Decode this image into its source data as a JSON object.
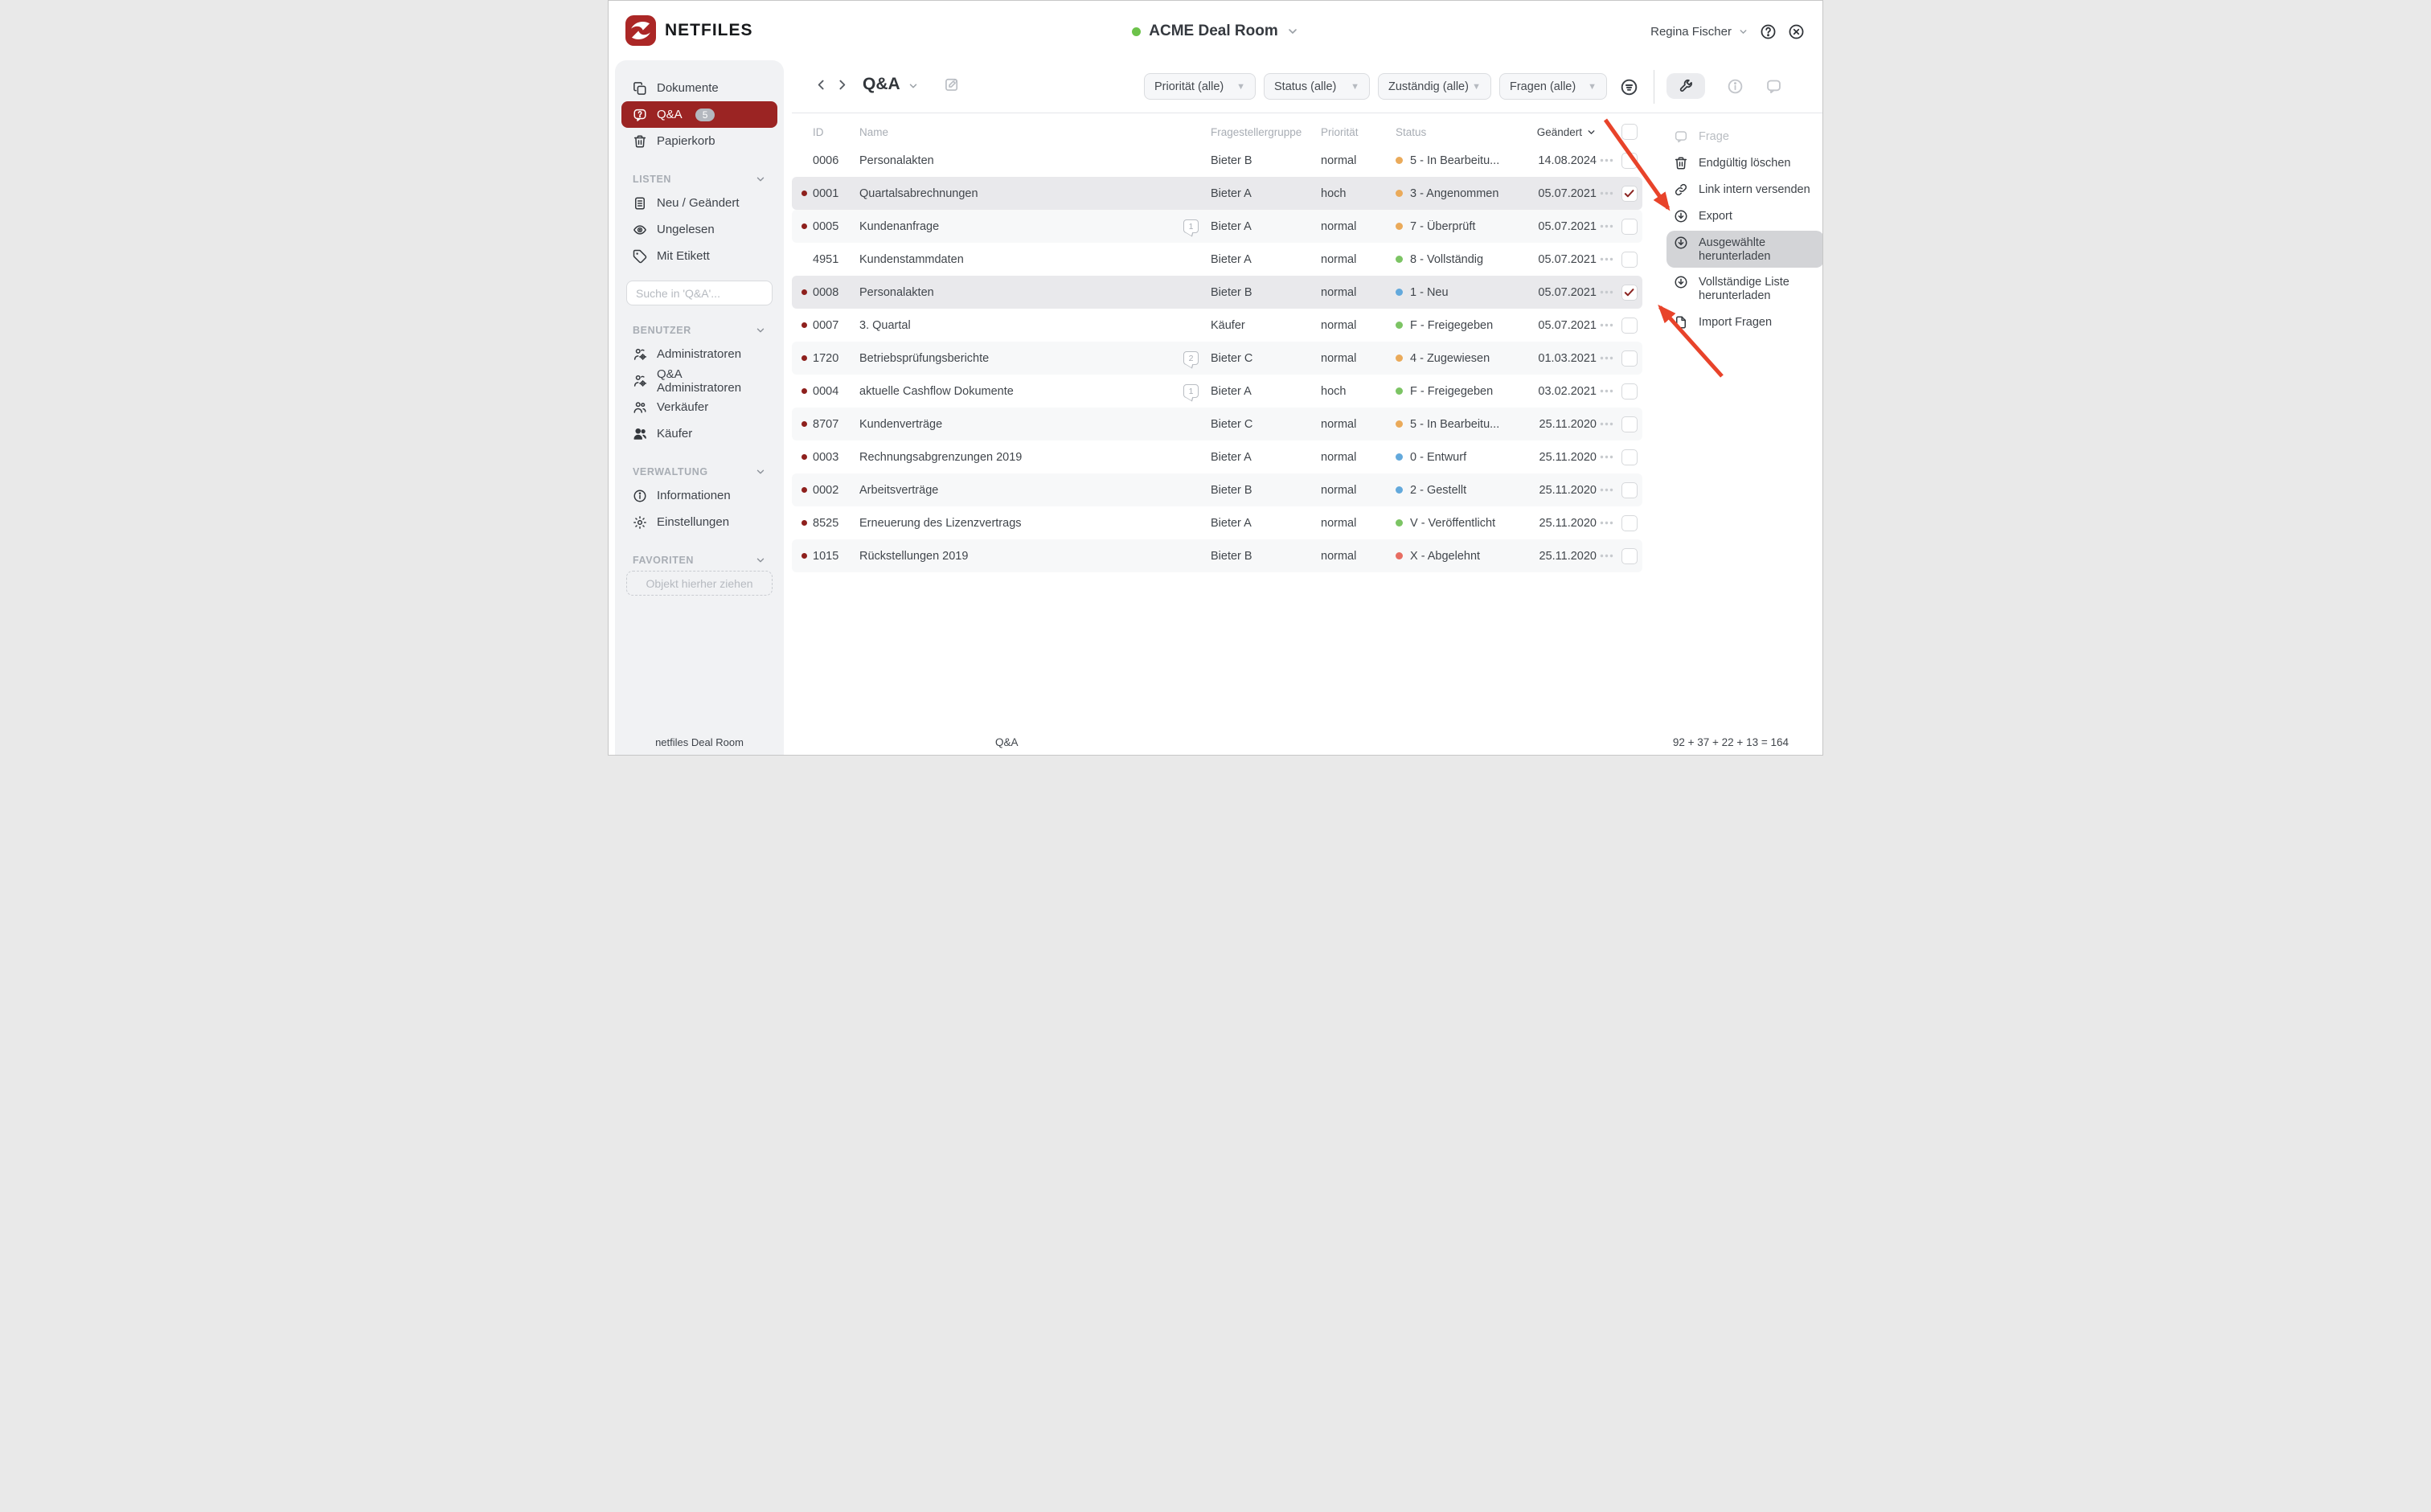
{
  "brand": {
    "name": "NETFILES"
  },
  "header": {
    "room_name": "ACME Deal Room",
    "user_name": "Regina Fischer"
  },
  "sidebar": {
    "nav": [
      {
        "label": "Dokumente",
        "icon": "documents-icon",
        "active": false
      },
      {
        "label": "Q&A",
        "icon": "qa-bubble-icon",
        "active": true,
        "badge": "5"
      },
      {
        "label": "Papierkorb",
        "icon": "trash-icon",
        "active": false
      }
    ],
    "sections": [
      {
        "title": "LISTEN",
        "items": [
          {
            "label": "Neu / Geändert",
            "icon": "list-document-icon"
          },
          {
            "label": "Ungelesen",
            "icon": "eye-icon"
          },
          {
            "label": "Mit Etikett",
            "icon": "tag-icon"
          }
        ]
      },
      {
        "title": "BENUTZER",
        "items": [
          {
            "label": "Administratoren",
            "icon": "users-gear-icon"
          },
          {
            "label": "Q&A Administratoren",
            "icon": "users-gear-icon"
          },
          {
            "label": "Verkäufer",
            "icon": "users-icon"
          },
          {
            "label": "Käufer",
            "icon": "users-filled-icon"
          }
        ]
      },
      {
        "title": "VERWALTUNG",
        "items": [
          {
            "label": "Informationen",
            "icon": "info-circle-icon"
          },
          {
            "label": "Einstellungen",
            "icon": "gear-icon"
          }
        ]
      },
      {
        "title": "FAVORITEN",
        "items": []
      }
    ],
    "search_placeholder": "Suche in 'Q&A'...",
    "favorites_dropzone": "Objekt hierher ziehen",
    "footer": "netfiles Deal Room"
  },
  "toolbar": {
    "title": "Q&A",
    "filters": [
      "Priorität (alle)",
      "Status (alle)",
      "Zuständig (alle)",
      "Fragen (alle)"
    ]
  },
  "table": {
    "columns": {
      "id": "ID",
      "name": "Name",
      "group": "Fragestellergruppe",
      "priority": "Priorität",
      "status": "Status",
      "modified": "Geändert"
    },
    "rows": [
      {
        "id": "0006",
        "name": "Personalakten",
        "unread": false,
        "comments": null,
        "group": "Bieter B",
        "priority": "normal",
        "status": "5 - In Bearbeitu...",
        "status_color": "orange",
        "modified": "14.08.2024",
        "checked": false,
        "selected": false,
        "shaded": false
      },
      {
        "id": "0001",
        "name": "Quartalsabrechnungen",
        "unread": true,
        "comments": null,
        "group": "Bieter A",
        "priority": "hoch",
        "status": "3 - Angenommen",
        "status_color": "orange",
        "modified": "05.07.2021",
        "checked": true,
        "selected": true,
        "shaded": false
      },
      {
        "id": "0005",
        "name": "Kundenanfrage",
        "unread": true,
        "comments": "1",
        "group": "Bieter A",
        "priority": "normal",
        "status": "7 - Überprüft",
        "status_color": "orange",
        "modified": "05.07.2021",
        "checked": false,
        "selected": false,
        "shaded": true
      },
      {
        "id": "4951",
        "name": "Kundenstammdaten",
        "unread": false,
        "comments": null,
        "group": "Bieter A",
        "priority": "normal",
        "status": "8 - Vollständig",
        "status_color": "green",
        "modified": "05.07.2021",
        "checked": false,
        "selected": false,
        "shaded": false
      },
      {
        "id": "0008",
        "name": "Personalakten",
        "unread": true,
        "comments": null,
        "group": "Bieter B",
        "priority": "normal",
        "status": "1 - Neu",
        "status_color": "blue",
        "modified": "05.07.2021",
        "checked": true,
        "selected": true,
        "shaded": false
      },
      {
        "id": "0007",
        "name": "3. Quartal",
        "unread": true,
        "comments": null,
        "group": "Käufer",
        "priority": "normal",
        "status": "F - Freigegeben",
        "status_color": "green",
        "modified": "05.07.2021",
        "checked": false,
        "selected": false,
        "shaded": false
      },
      {
        "id": "1720",
        "name": "Betriebsprüfungsberichte",
        "unread": true,
        "comments": "2",
        "group": "Bieter C",
        "priority": "normal",
        "status": "4 - Zugewiesen",
        "status_color": "orange",
        "modified": "01.03.2021",
        "checked": false,
        "selected": false,
        "shaded": true
      },
      {
        "id": "0004",
        "name": "aktuelle Cashflow Dokumente",
        "unread": true,
        "comments": "1",
        "group": "Bieter A",
        "priority": "hoch",
        "status": "F - Freigegeben",
        "status_color": "green",
        "modified": "03.02.2021",
        "checked": false,
        "selected": false,
        "shaded": false
      },
      {
        "id": "8707",
        "name": "Kundenverträge",
        "unread": true,
        "comments": null,
        "group": "Bieter C",
        "priority": "normal",
        "status": "5 - In Bearbeitu...",
        "status_color": "orange",
        "modified": "25.11.2020",
        "checked": false,
        "selected": false,
        "shaded": true
      },
      {
        "id": "0003",
        "name": "Rechnungsabgrenzungen 2019",
        "unread": true,
        "comments": null,
        "group": "Bieter A",
        "priority": "normal",
        "status": "0 - Entwurf",
        "status_color": "blue",
        "modified": "25.11.2020",
        "checked": false,
        "selected": false,
        "shaded": false
      },
      {
        "id": "0002",
        "name": "Arbeitsverträge",
        "unread": true,
        "comments": null,
        "group": "Bieter B",
        "priority": "normal",
        "status": "2 - Gestellt",
        "status_color": "blue",
        "modified": "25.11.2020",
        "checked": false,
        "selected": false,
        "shaded": true
      },
      {
        "id": "8525",
        "name": "Erneuerung des Lizenzvertrags",
        "unread": true,
        "comments": null,
        "group": "Bieter A",
        "priority": "normal",
        "status": "V - Veröffentlicht",
        "status_color": "green",
        "modified": "25.11.2020",
        "checked": false,
        "selected": false,
        "shaded": false
      },
      {
        "id": "1015",
        "name": "Rückstellungen 2019",
        "unread": true,
        "comments": null,
        "group": "Bieter B",
        "priority": "normal",
        "status": "X - Abgelehnt",
        "status_color": "red",
        "modified": "25.11.2020",
        "checked": false,
        "selected": false,
        "shaded": true
      }
    ]
  },
  "actions_panel": {
    "items": [
      {
        "label": "Frage",
        "icon": "comment-icon",
        "disabled": true,
        "highlighted": false
      },
      {
        "label": "Endgültig löschen",
        "icon": "trash-icon",
        "disabled": false,
        "highlighted": false
      },
      {
        "label": "Link intern versenden",
        "icon": "link-icon",
        "disabled": false,
        "highlighted": false
      },
      {
        "label": "Export",
        "icon": "download-circle-icon",
        "disabled": false,
        "highlighted": false
      },
      {
        "label": "Ausgewählte herunterladen",
        "icon": "download-circle-icon",
        "disabled": false,
        "highlighted": true
      },
      {
        "label": "Vollständige Liste herunterladen",
        "icon": "download-circle-icon",
        "disabled": false,
        "highlighted": false
      },
      {
        "label": "Import Fragen",
        "icon": "file-icon",
        "disabled": false,
        "highlighted": false
      }
    ]
  },
  "footer": {
    "left": "Q&A",
    "right": "92 + 37 + 22 + 13 = 164"
  },
  "colors": {
    "accent_red": "#9b2423",
    "arrow_red": "#e8432a",
    "status_orange": "#eaaa5a",
    "status_green": "#7cc464",
    "status_blue": "#63a9dc",
    "status_red": "#e76d62",
    "room_online_green": "#6cc24a"
  }
}
